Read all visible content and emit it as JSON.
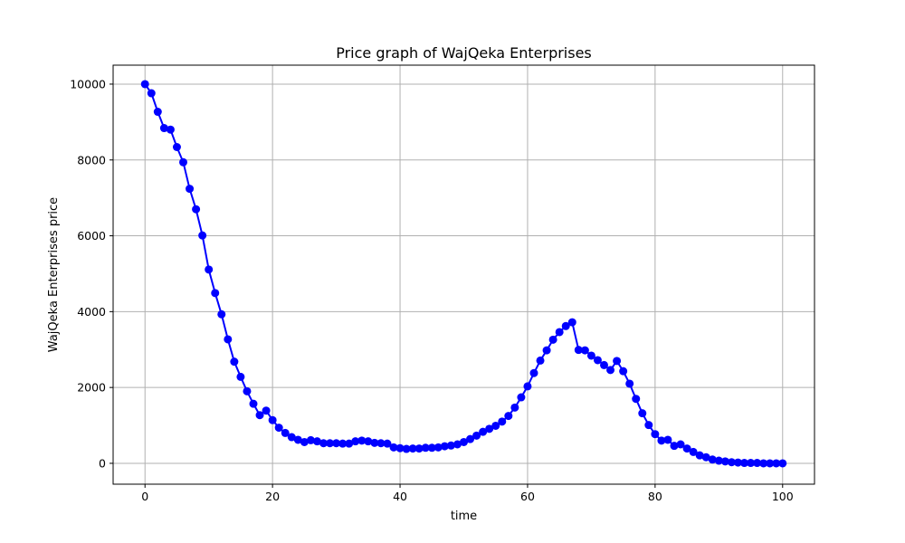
{
  "chart_data": {
    "type": "line",
    "title": "Price graph of WajQeka Enterprises",
    "xlabel": "time",
    "ylabel": "WajQeka Enterprises price",
    "xlim": [
      -5,
      105
    ],
    "ylim": [
      -550,
      10500
    ],
    "xticks": [
      0,
      20,
      40,
      60,
      80,
      100
    ],
    "yticks": [
      0,
      2000,
      4000,
      6000,
      8000,
      10000
    ],
    "grid": true,
    "line_color": "#0000ff",
    "marker": "circle",
    "series": [
      {
        "x": [
          0,
          1,
          2,
          3,
          4,
          5,
          6,
          7,
          8,
          9,
          10,
          11,
          12,
          13,
          14,
          15,
          16,
          17,
          18,
          19,
          20,
          21,
          22,
          23,
          24,
          25,
          26,
          27,
          28,
          29,
          30,
          31,
          32,
          33,
          34,
          35,
          36,
          37,
          38,
          39,
          40,
          41,
          42,
          43,
          44,
          45,
          46,
          47,
          48,
          49,
          50,
          51,
          52,
          53,
          54,
          55,
          56,
          57,
          58,
          59,
          60,
          61,
          62,
          63,
          64,
          65,
          66,
          67,
          68,
          69,
          70,
          71,
          72,
          73,
          74,
          75,
          76,
          77,
          78,
          79,
          80,
          81,
          82,
          83,
          84,
          85,
          86,
          87,
          88,
          89,
          90,
          91,
          92,
          93,
          94,
          95,
          96,
          97,
          98,
          99,
          100
        ],
        "y": [
          10000,
          9760,
          9270,
          8840,
          8800,
          8340,
          7940,
          7240,
          6700,
          6010,
          5110,
          4490,
          3930,
          3270,
          2680,
          2280,
          1900,
          1570,
          1270,
          1390,
          1140,
          940,
          800,
          690,
          620,
          560,
          610,
          580,
          530,
          530,
          530,
          520,
          520,
          580,
          600,
          580,
          540,
          530,
          520,
          420,
          400,
          380,
          390,
          390,
          410,
          410,
          420,
          450,
          470,
          500,
          560,
          640,
          730,
          830,
          910,
          990,
          1100,
          1250,
          1470,
          1740,
          2030,
          2380,
          2710,
          2980,
          3260,
          3460,
          3620,
          3720,
          2990,
          2980,
          2840,
          2720,
          2590,
          2460,
          2700,
          2430,
          2100,
          1700,
          1320,
          1010,
          770,
          600,
          620,
          460,
          500,
          390,
          300,
          210,
          160,
          100,
          70,
          50,
          30,
          20,
          10,
          10,
          10,
          0,
          0,
          0,
          0
        ]
      }
    ]
  }
}
